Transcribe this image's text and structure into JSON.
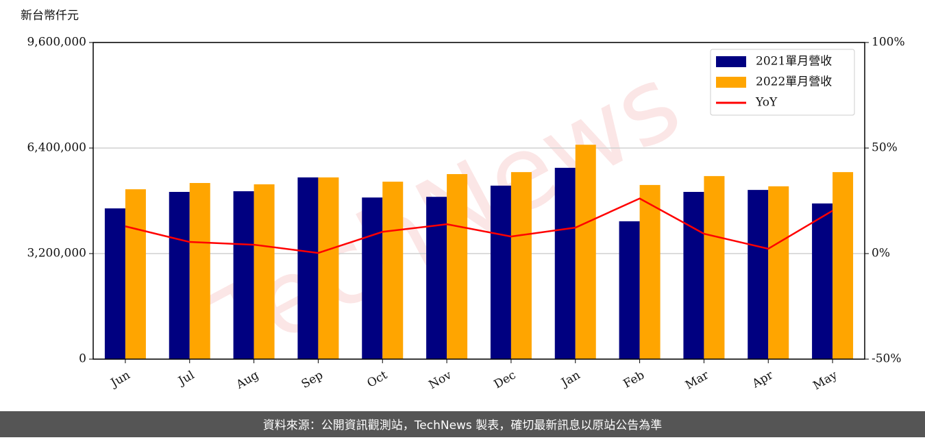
{
  "chart_data": {
    "type": "bar_line",
    "y_label": "新台幣仟元",
    "watermark": "TechNews",
    "source": "資料來源：公開資訊觀測站，TechNews 製表，確切最新訊息以原站公告為準",
    "categories": [
      "Jun",
      "Jul",
      "Aug",
      "Sep",
      "Oct",
      "Nov",
      "Dec",
      "Jan",
      "Feb",
      "Mar",
      "Apr",
      "May"
    ],
    "series": [
      {
        "name": "2021單月營收",
        "color": "#000080",
        "values": [
          4570000,
          5070000,
          5090000,
          5510000,
          4900000,
          4920000,
          5260000,
          5800000,
          4180000,
          5070000,
          5130000,
          4720000
        ]
      },
      {
        "name": "2022單月營收",
        "color": "#ffa500",
        "values": [
          5150000,
          5340000,
          5300000,
          5510000,
          5380000,
          5610000,
          5670000,
          6500000,
          5280000,
          5550000,
          5240000,
          5670000
        ]
      },
      {
        "name": "YoY",
        "color": "#ff0000",
        "axis": "y2",
        "values": [
          12.9,
          5.5,
          4.2,
          0.3,
          10.3,
          13.9,
          8.1,
          12.3,
          26.1,
          9.4,
          2.3,
          20.3
        ]
      }
    ],
    "ylim": [
      0,
      9600000
    ],
    "yticks": [
      0,
      {
        "value": 3200000,
        "label": "3,200,000"
      },
      {
        "value": 6400000,
        "label": "6,400,000"
      },
      {
        "value": 9600000,
        "label": "9,600,000"
      }
    ],
    "y2lim": [
      -50,
      100
    ],
    "y2ticks": [
      {
        "value": -50,
        "label": "-50%"
      },
      {
        "value": 0,
        "label": "0%"
      },
      {
        "value": 50,
        "label": "50%"
      },
      {
        "value": 100,
        "label": "100%"
      }
    ],
    "grid": true,
    "legend": "upper right"
  }
}
